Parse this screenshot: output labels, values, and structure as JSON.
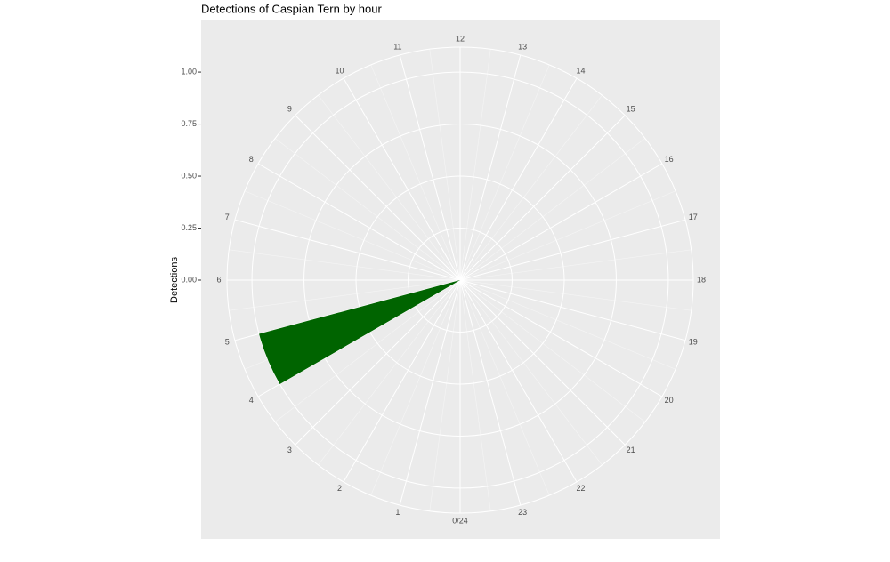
{
  "chart_data": {
    "type": "polar-bar",
    "title": "Detections of Caspian Tern by hour",
    "y_label": "Detections",
    "x": [
      0,
      1,
      2,
      3,
      4,
      5,
      6,
      7,
      8,
      9,
      10,
      11,
      12,
      13,
      14,
      15,
      16,
      17,
      18,
      19,
      20,
      21,
      22,
      23
    ],
    "values": [
      0,
      0,
      0,
      0,
      1,
      0,
      0,
      0,
      0,
      0,
      0,
      0,
      0,
      0,
      0,
      0,
      0,
      0,
      0,
      0,
      0,
      0,
      0,
      0
    ],
    "color": "#006400",
    "xlim": [
      0,
      24
    ],
    "xticks": [
      {
        "value": 0,
        "label": "0/24"
      },
      1,
      2,
      3,
      4,
      5,
      6,
      7,
      8,
      9,
      10,
      11,
      12,
      13,
      14,
      15,
      16,
      17,
      18,
      19,
      20,
      21,
      22,
      23
    ],
    "ylim": [
      0,
      1.12
    ],
    "yticks": [
      {
        "value": 0,
        "label": "0.00"
      },
      {
        "value": 0.25,
        "label": "0.25"
      },
      {
        "value": 0.5,
        "label": "0.50"
      },
      {
        "value": 0.75,
        "label": "0.75"
      },
      {
        "value": 1,
        "label": "1.00"
      }
    ],
    "grid": true
  }
}
